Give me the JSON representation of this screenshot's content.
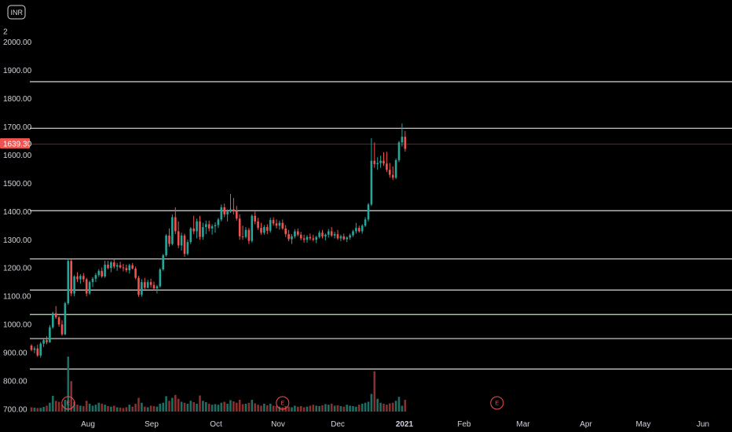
{
  "currency_label": "INR",
  "last_price": "1639.30",
  "colors": {
    "up": "#26a69a",
    "down": "#ef5350",
    "volume_up": "#1f6e64",
    "volume_down": "#8a2e2e",
    "level_line": "#d9d9d9",
    "green_line": "#2e6b30",
    "price_line": "#7a1f1f"
  },
  "chart_data": {
    "type": "candlestick",
    "title": "",
    "xlabel": "",
    "ylabel": "",
    "y_range": [
      690,
      2100
    ],
    "y_ticks": [
      "700.00",
      "800.00",
      "900.00",
      "1000.00",
      "1100.00",
      "1200.00",
      "1300.00",
      "1400.00",
      "1500.00",
      "1600.00",
      "1700.00",
      "1800.00",
      "1900.00",
      "2000.00"
    ],
    "top_tick_partial": "2",
    "x_ticks": [
      {
        "label": "Aug",
        "bold": false
      },
      {
        "label": "Sep",
        "bold": false
      },
      {
        "label": "Oct",
        "bold": false
      },
      {
        "label": "Nov",
        "bold": false
      },
      {
        "label": "Dec",
        "bold": false
      },
      {
        "label": "2021",
        "bold": true
      },
      {
        "label": "Feb",
        "bold": false
      },
      {
        "label": "Mar",
        "bold": false
      },
      {
        "label": "Apr",
        "bold": false
      },
      {
        "label": "May",
        "bold": false
      },
      {
        "label": "Jun",
        "bold": false
      }
    ],
    "horizontal_levels": [
      1860,
      1695,
      1403,
      1232,
      1122,
      1035,
      950,
      842
    ],
    "green_level": 1037,
    "events": [
      {
        "label": "E",
        "index": 12
      },
      {
        "label": "E",
        "index": 82
      },
      {
        "label": "E",
        "index": 152
      }
    ],
    "candles": [
      [
        925,
        930,
        905,
        910
      ],
      [
        910,
        922,
        898,
        915
      ],
      [
        915,
        928,
        885,
        890
      ],
      [
        890,
        938,
        882,
        932
      ],
      [
        932,
        948,
        920,
        945
      ],
      [
        945,
        958,
        930,
        937
      ],
      [
        937,
        998,
        935,
        990
      ],
      [
        990,
        1045,
        985,
        1040
      ],
      [
        1040,
        1065,
        1020,
        1025
      ],
      [
        1025,
        1030,
        992,
        1000
      ],
      [
        1000,
        1015,
        960,
        965
      ],
      [
        965,
        1080,
        962,
        1075
      ],
      [
        1075,
        1235,
        1070,
        1225
      ],
      [
        1225,
        1232,
        1100,
        1110
      ],
      [
        1110,
        1175,
        1100,
        1170
      ],
      [
        1170,
        1185,
        1150,
        1160
      ],
      [
        1160,
        1178,
        1145,
        1172
      ],
      [
        1172,
        1182,
        1150,
        1160
      ],
      [
        1160,
        1165,
        1100,
        1110
      ],
      [
        1110,
        1155,
        1105,
        1150
      ],
      [
        1150,
        1168,
        1132,
        1162
      ],
      [
        1162,
        1182,
        1150,
        1175
      ],
      [
        1175,
        1196,
        1168,
        1190
      ],
      [
        1190,
        1202,
        1165,
        1170
      ],
      [
        1170,
        1226,
        1165,
        1212
      ],
      [
        1212,
        1225,
        1195,
        1200
      ],
      [
        1200,
        1225,
        1185,
        1220
      ],
      [
        1220,
        1232,
        1198,
        1205
      ],
      [
        1205,
        1218,
        1190,
        1210
      ],
      [
        1210,
        1222,
        1198,
        1202
      ],
      [
        1202,
        1215,
        1188,
        1200
      ],
      [
        1200,
        1212,
        1185,
        1192
      ],
      [
        1192,
        1215,
        1180,
        1210
      ],
      [
        1210,
        1218,
        1195,
        1198
      ],
      [
        1198,
        1205,
        1160,
        1165
      ],
      [
        1165,
        1172,
        1098,
        1105
      ],
      [
        1105,
        1160,
        1098,
        1150
      ],
      [
        1150,
        1165,
        1125,
        1130
      ],
      [
        1130,
        1158,
        1128,
        1150
      ],
      [
        1150,
        1162,
        1130,
        1140
      ],
      [
        1140,
        1152,
        1122,
        1128
      ],
      [
        1128,
        1140,
        1110,
        1135
      ],
      [
        1135,
        1200,
        1130,
        1195
      ],
      [
        1195,
        1250,
        1190,
        1245
      ],
      [
        1245,
        1320,
        1240,
        1315
      ],
      [
        1315,
        1340,
        1275,
        1285
      ],
      [
        1285,
        1390,
        1280,
        1380
      ],
      [
        1380,
        1415,
        1320,
        1330
      ],
      [
        1330,
        1365,
        1270,
        1280
      ],
      [
        1280,
        1325,
        1262,
        1315
      ],
      [
        1315,
        1322,
        1240,
        1250
      ],
      [
        1250,
        1300,
        1245,
        1292
      ],
      [
        1292,
        1345,
        1285,
        1340
      ],
      [
        1340,
        1385,
        1320,
        1330
      ],
      [
        1330,
        1375,
        1305,
        1365
      ],
      [
        1365,
        1385,
        1300,
        1310
      ],
      [
        1310,
        1360,
        1300,
        1345
      ],
      [
        1345,
        1368,
        1320,
        1355
      ],
      [
        1355,
        1368,
        1330,
        1340
      ],
      [
        1340,
        1355,
        1318,
        1348
      ],
      [
        1348,
        1362,
        1325,
        1352
      ],
      [
        1352,
        1378,
        1342,
        1372
      ],
      [
        1372,
        1425,
        1365,
        1415
      ],
      [
        1415,
        1428,
        1380,
        1390
      ],
      [
        1390,
        1408,
        1365,
        1400
      ],
      [
        1400,
        1462,
        1395,
        1408
      ],
      [
        1408,
        1448,
        1390,
        1402
      ],
      [
        1402,
        1420,
        1368,
        1375
      ],
      [
        1375,
        1390,
        1300,
        1312
      ],
      [
        1312,
        1350,
        1300,
        1310
      ],
      [
        1310,
        1345,
        1305,
        1335
      ],
      [
        1335,
        1342,
        1285,
        1296
      ],
      [
        1296,
        1390,
        1290,
        1385
      ],
      [
        1385,
        1400,
        1355,
        1365
      ],
      [
        1365,
        1378,
        1335,
        1342
      ],
      [
        1342,
        1360,
        1318,
        1325
      ],
      [
        1325,
        1352,
        1318,
        1345
      ],
      [
        1345,
        1355,
        1320,
        1332
      ],
      [
        1332,
        1378,
        1325,
        1370
      ],
      [
        1370,
        1380,
        1350,
        1358
      ],
      [
        1358,
        1372,
        1340,
        1350
      ],
      [
        1350,
        1368,
        1336,
        1360
      ],
      [
        1360,
        1372,
        1335,
        1340
      ],
      [
        1340,
        1352,
        1310,
        1320
      ],
      [
        1320,
        1335,
        1295,
        1302
      ],
      [
        1302,
        1320,
        1285,
        1312
      ],
      [
        1312,
        1338,
        1305,
        1330
      ],
      [
        1330,
        1340,
        1312,
        1318
      ],
      [
        1318,
        1328,
        1298,
        1305
      ],
      [
        1305,
        1318,
        1290,
        1300
      ],
      [
        1300,
        1316,
        1290,
        1310
      ],
      [
        1310,
        1322,
        1298,
        1305
      ],
      [
        1305,
        1318,
        1295,
        1300
      ],
      [
        1300,
        1314,
        1288,
        1310
      ],
      [
        1310,
        1332,
        1305,
        1325
      ],
      [
        1325,
        1335,
        1305,
        1312
      ],
      [
        1312,
        1322,
        1298,
        1318
      ],
      [
        1318,
        1338,
        1308,
        1330
      ],
      [
        1330,
        1345,
        1310,
        1315
      ],
      [
        1315,
        1328,
        1305,
        1320
      ],
      [
        1320,
        1335,
        1300,
        1305
      ],
      [
        1305,
        1318,
        1295,
        1312
      ],
      [
        1312,
        1322,
        1298,
        1302
      ],
      [
        1302,
        1312,
        1292,
        1308
      ],
      [
        1308,
        1322,
        1300,
        1316
      ],
      [
        1316,
        1335,
        1310,
        1330
      ],
      [
        1330,
        1360,
        1322,
        1342
      ],
      [
        1342,
        1350,
        1325,
        1330
      ],
      [
        1330,
        1355,
        1322,
        1350
      ],
      [
        1350,
        1380,
        1345,
        1372
      ],
      [
        1372,
        1430,
        1365,
        1425
      ],
      [
        1425,
        1660,
        1420,
        1580
      ],
      [
        1580,
        1645,
        1555,
        1568
      ],
      [
        1568,
        1592,
        1548,
        1572
      ],
      [
        1572,
        1598,
        1555,
        1580
      ],
      [
        1580,
        1610,
        1562,
        1570
      ],
      [
        1570,
        1612,
        1540,
        1548
      ],
      [
        1548,
        1572,
        1520,
        1530
      ],
      [
        1530,
        1560,
        1512,
        1520
      ],
      [
        1520,
        1588,
        1515,
        1582
      ],
      [
        1582,
        1650,
        1575,
        1645
      ],
      [
        1645,
        1712,
        1630,
        1665
      ],
      [
        1665,
        1685,
        1612,
        1622
      ]
    ],
    "volumes": [
      0.22,
      0.2,
      0.18,
      0.19,
      0.24,
      0.3,
      0.45,
      0.8,
      0.55,
      0.5,
      0.35,
      0.6,
      2.8,
      1.55,
      0.5,
      0.35,
      0.3,
      0.28,
      0.55,
      0.4,
      0.3,
      0.35,
      0.45,
      0.4,
      0.35,
      0.28,
      0.25,
      0.3,
      0.22,
      0.2,
      0.18,
      0.22,
      0.35,
      0.25,
      0.4,
      0.7,
      0.45,
      0.25,
      0.22,
      0.3,
      0.28,
      0.25,
      0.4,
      0.45,
      0.78,
      0.55,
      0.7,
      0.85,
      0.65,
      0.5,
      0.45,
      0.4,
      0.55,
      0.48,
      0.4,
      0.82,
      0.55,
      0.48,
      0.4,
      0.35,
      0.38,
      0.35,
      0.45,
      0.5,
      0.4,
      0.58,
      0.52,
      0.45,
      0.6,
      0.38,
      0.4,
      0.45,
      0.6,
      0.42,
      0.35,
      0.3,
      0.4,
      0.32,
      0.4,
      0.3,
      0.28,
      0.25,
      0.22,
      0.28,
      0.25,
      0.22,
      0.3,
      0.25,
      0.28,
      0.22,
      0.25,
      0.3,
      0.35,
      0.3,
      0.28,
      0.32,
      0.38,
      0.35,
      0.4,
      0.3,
      0.32,
      0.28,
      0.25,
      0.35,
      0.3,
      0.28,
      0.25,
      0.35,
      0.4,
      0.45,
      0.5,
      0.9,
      2.05,
      0.65,
      0.45,
      0.4,
      0.35,
      0.42,
      0.45,
      0.55,
      0.75,
      0.3,
      0.6
    ]
  }
}
